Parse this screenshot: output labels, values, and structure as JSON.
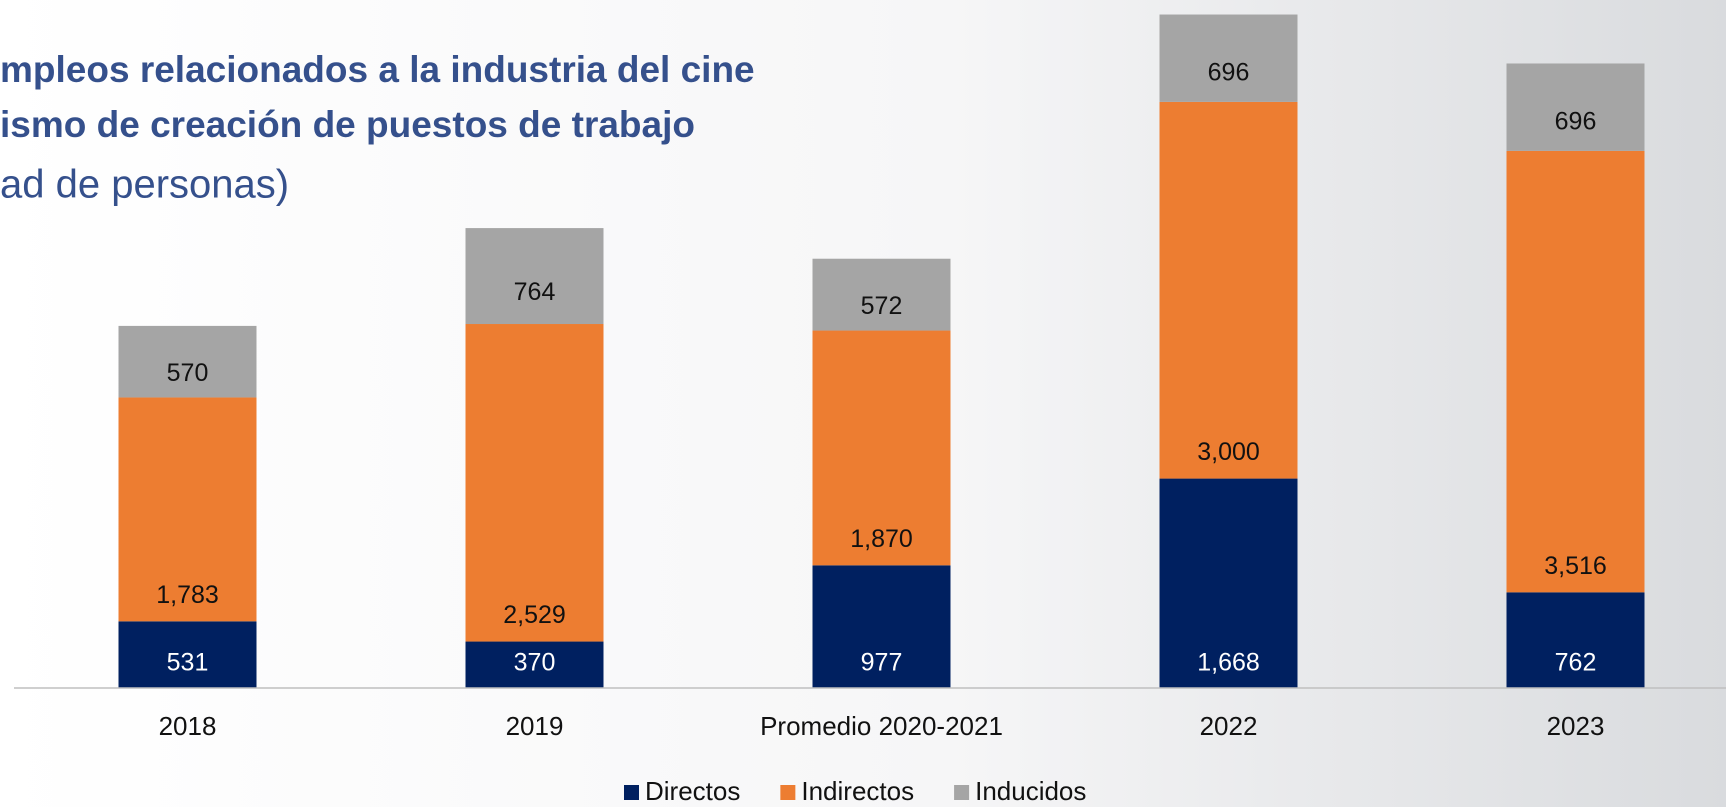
{
  "chart_data": {
    "type": "stacked_bar",
    "title": "mpleos relacionados a la industria del cine",
    "subtitle": "ismo de creación de puestos de trabajo",
    "unit_label": "ad de personas)",
    "categories": [
      "2018",
      "2019",
      "Promedio 2020-2021",
      "2022",
      "2023"
    ],
    "series": [
      {
        "name": "Directos",
        "color": "#002060",
        "values": [
          531,
          370,
          977,
          1668,
          762
        ],
        "value_labels": [
          "531",
          "370",
          "977",
          "1,668",
          "762"
        ]
      },
      {
        "name": "Indirectos",
        "color": "#ed7d31",
        "values": [
          1783,
          2529,
          1870,
          3000,
          3516
        ],
        "value_labels": [
          "1,783",
          "2,529",
          "1,870",
          "3,000",
          "3,516"
        ]
      },
      {
        "name": "Inducidos",
        "color": "#a5a5a5",
        "values": [
          570,
          764,
          572,
          696,
          696
        ],
        "value_labels": [
          "570",
          "764",
          "572",
          "696",
          "696"
        ]
      }
    ],
    "ylim": [
      0,
      5400
    ]
  }
}
